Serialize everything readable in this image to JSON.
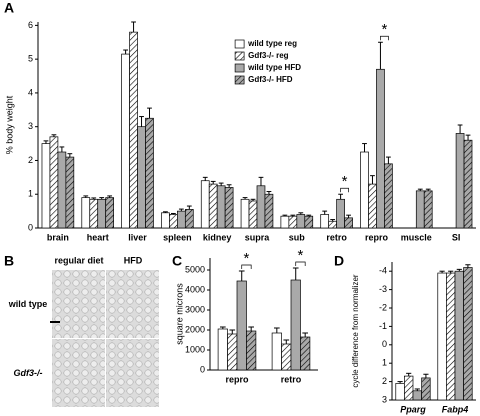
{
  "chart_data": [
    {
      "type": "bar",
      "panel": "A",
      "ylabel": "% body weight",
      "categories": [
        "brain",
        "heart",
        "liver",
        "spleen",
        "kidney",
        "supra",
        "sub",
        "retro",
        "repro",
        "muscle",
        "SI"
      ],
      "series": [
        {
          "name": "wild type reg",
          "color": "#ffffff",
          "hatch": false,
          "values": [
            2.5,
            0.9,
            5.15,
            0.45,
            1.4,
            0.85,
            0.35,
            0.4,
            2.25,
            null,
            null
          ],
          "errors": [
            0.08,
            0.05,
            0.12,
            0.03,
            0.1,
            0.05,
            0.03,
            0.1,
            0.25,
            null,
            null
          ]
        },
        {
          "name": "Gdf3-/- reg",
          "color": "#ffffff",
          "hatch": true,
          "values": [
            2.7,
            0.85,
            5.8,
            0.4,
            1.3,
            0.8,
            0.35,
            0.2,
            1.3,
            null,
            null
          ],
          "errors": [
            0.06,
            0.04,
            0.3,
            0.03,
            0.08,
            0.05,
            0.03,
            0.05,
            0.25,
            null,
            null
          ]
        },
        {
          "name": "wild type HFD",
          "color": "#a9a9a9",
          "hatch": false,
          "values": [
            2.25,
            0.85,
            3.0,
            0.5,
            1.25,
            1.25,
            0.4,
            0.85,
            4.7,
            1.1,
            2.8
          ],
          "errors": [
            0.15,
            0.05,
            0.3,
            0.06,
            0.08,
            0.25,
            0.05,
            0.15,
            0.8,
            0.05,
            0.25
          ]
        },
        {
          "name": "Gdf3-/- HFD",
          "color": "#a9a9a9",
          "hatch": true,
          "values": [
            2.1,
            0.9,
            3.25,
            0.55,
            1.2,
            1.0,
            0.35,
            0.3,
            1.9,
            1.1,
            2.6
          ],
          "errors": [
            0.1,
            0.05,
            0.3,
            0.1,
            0.08,
            0.08,
            0.03,
            0.08,
            0.2,
            0.05,
            0.15
          ]
        }
      ],
      "ylim": [
        0,
        6.1
      ],
      "yticks": [
        0,
        1,
        2,
        3,
        4,
        5,
        6
      ],
      "legend": "top",
      "annotations": [
        {
          "text": "*",
          "category": "retro"
        },
        {
          "text": "*",
          "category": "repro"
        }
      ]
    },
    {
      "type": "image",
      "panel": "B",
      "columns": [
        "regular diet",
        "HFD"
      ],
      "rows": [
        "wild type",
        "Gdf3-/-"
      ]
    },
    {
      "type": "bar",
      "panel": "C",
      "ylabel": "square microns",
      "categories": [
        "repro",
        "retro"
      ],
      "series": [
        {
          "name": "wild type reg",
          "color": "#ffffff",
          "hatch": false,
          "values": [
            2050,
            1850
          ],
          "errors": [
            100,
            250
          ]
        },
        {
          "name": "Gdf3-/- reg",
          "color": "#ffffff",
          "hatch": true,
          "values": [
            1800,
            1300
          ],
          "errors": [
            200,
            200
          ]
        },
        {
          "name": "wild type HFD",
          "color": "#a9a9a9",
          "hatch": false,
          "values": [
            4450,
            4500
          ],
          "errors": [
            500,
            600
          ]
        },
        {
          "name": "Gdf3-/- HFD",
          "color": "#a9a9a9",
          "hatch": true,
          "values": [
            1950,
            1650
          ],
          "errors": [
            200,
            200
          ]
        }
      ],
      "ylim": [
        0,
        5600
      ],
      "yticks": [
        0,
        1000,
        2000,
        3000,
        4000,
        5000
      ],
      "annotations": [
        {
          "text": "*",
          "category": "repro"
        },
        {
          "text": "*",
          "category": "retro"
        }
      ]
    },
    {
      "type": "bar",
      "panel": "D",
      "ylabel": "cycle difference from normalizer",
      "categories": [
        "Pparg",
        "Fabp4"
      ],
      "series": [
        {
          "name": "wild type reg",
          "color": "#ffffff",
          "hatch": false,
          "values": [
            2.1,
            -3.9
          ],
          "errors": [
            0.1,
            0.1
          ]
        },
        {
          "name": "Gdf3-/- reg",
          "color": "#ffffff",
          "hatch": true,
          "values": [
            1.7,
            -3.9
          ],
          "errors": [
            0.15,
            0.1
          ]
        },
        {
          "name": "wild type HFD",
          "color": "#a9a9a9",
          "hatch": false,
          "values": [
            2.5,
            -4.0
          ],
          "errors": [
            0.1,
            0.1
          ]
        },
        {
          "name": "Gdf3-/- HFD",
          "color": "#a9a9a9",
          "hatch": true,
          "values": [
            1.8,
            -4.2
          ],
          "errors": [
            0.2,
            0.15
          ]
        }
      ],
      "ylim": [
        3,
        -4.5
      ],
      "yticks": [
        -4,
        -3,
        -2,
        -1,
        0,
        1,
        2,
        3
      ]
    }
  ]
}
